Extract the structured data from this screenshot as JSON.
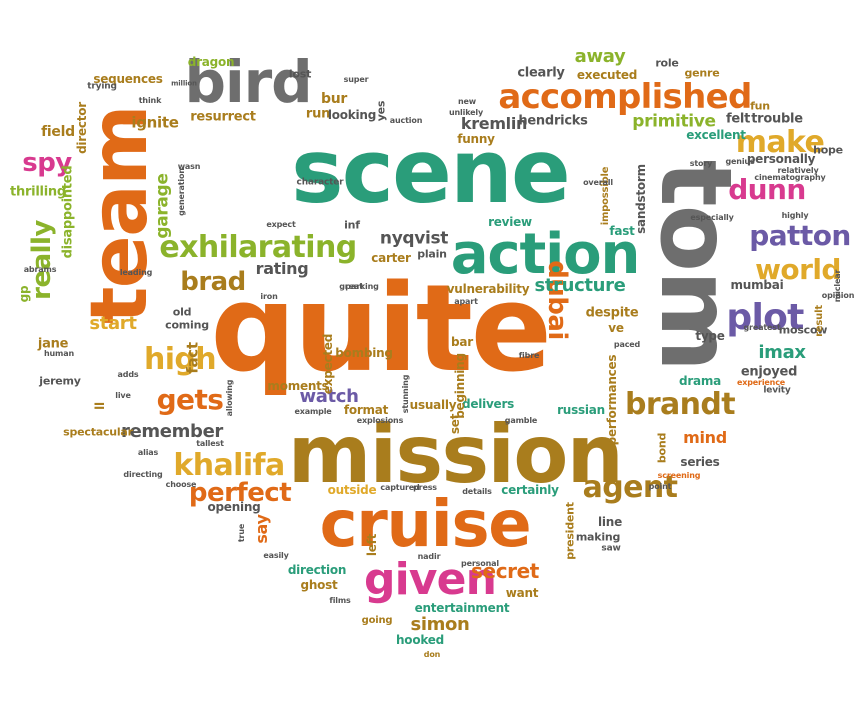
{
  "colors": {
    "green": "#2a9d7a",
    "orange": "#e06a17",
    "gray": "#6e6e6e",
    "olive": "#a97d1d",
    "gold": "#e0a92a",
    "pink": "#d83a8f",
    "purple": "#6b5aa6",
    "lime": "#8bb32b",
    "teal": "#2a9d7a",
    "darkgray": "#555555"
  },
  "words": [
    {
      "text": "scene",
      "color": "green"
    },
    {
      "text": "quite",
      "color": "orange"
    },
    {
      "text": "mission",
      "color": "olive"
    },
    {
      "text": "cruise",
      "color": "orange"
    },
    {
      "text": "tom",
      "color": "gray"
    },
    {
      "text": "team",
      "color": "orange"
    },
    {
      "text": "bird",
      "color": "gray"
    },
    {
      "text": "action",
      "color": "green"
    },
    {
      "text": "given",
      "color": "pink"
    },
    {
      "text": "accomplished",
      "color": "orange"
    },
    {
      "text": "exhilarating",
      "color": "lime"
    },
    {
      "text": "plot",
      "color": "purple"
    },
    {
      "text": "patton",
      "color": "purple"
    },
    {
      "text": "world",
      "color": "gold"
    },
    {
      "text": "brandt",
      "color": "olive"
    },
    {
      "text": "dunn",
      "color": "pink"
    },
    {
      "text": "make",
      "color": "gold"
    },
    {
      "text": "khalifa",
      "color": "gold"
    },
    {
      "text": "agent",
      "color": "olive"
    },
    {
      "text": "gets",
      "color": "orange"
    },
    {
      "text": "high",
      "color": "gold"
    },
    {
      "text": "brad",
      "color": "olive"
    },
    {
      "text": "really",
      "color": "lime"
    },
    {
      "text": "spy",
      "color": "pink"
    },
    {
      "text": "dubai",
      "color": "orange"
    },
    {
      "text": "perfect",
      "color": "orange"
    },
    {
      "text": "secret",
      "color": "orange"
    },
    {
      "text": "simon",
      "color": "olive"
    },
    {
      "text": "away",
      "color": "lime"
    },
    {
      "text": "primitive",
      "color": "lime"
    },
    {
      "text": "structure",
      "color": "green"
    },
    {
      "text": "remember",
      "color": "darkgray"
    },
    {
      "text": "imax",
      "color": "green"
    },
    {
      "text": "mind",
      "color": "orange"
    },
    {
      "text": "watch",
      "color": "purple"
    },
    {
      "text": "start",
      "color": "gold"
    },
    {
      "text": "rating",
      "color": "darkgray"
    },
    {
      "text": "kremlin",
      "color": "darkgray"
    },
    {
      "text": "nyqvist",
      "color": "darkgray"
    },
    {
      "text": "garage",
      "color": "lime"
    },
    {
      "text": "fact",
      "color": "olive"
    },
    {
      "text": "ignite",
      "color": "olive"
    },
    {
      "text": "resurrect",
      "color": "olive"
    },
    {
      "text": "sequences",
      "color": "olive"
    },
    {
      "text": "dragon",
      "color": "lime"
    },
    {
      "text": "lost",
      "color": "darkgray"
    },
    {
      "text": "super",
      "color": "darkgray"
    },
    {
      "text": "clearly",
      "color": "darkgray"
    },
    {
      "text": "executed",
      "color": "olive"
    },
    {
      "text": "role",
      "color": "darkgray"
    },
    {
      "text": "genre",
      "color": "olive"
    },
    {
      "text": "fun",
      "color": "olive"
    },
    {
      "text": "felt",
      "color": "darkgray"
    },
    {
      "text": "trouble",
      "color": "darkgray"
    },
    {
      "text": "hope",
      "color": "darkgray"
    },
    {
      "text": "excellent",
      "color": "green"
    },
    {
      "text": "personally",
      "color": "darkgray"
    },
    {
      "text": "relatively",
      "color": "darkgray"
    },
    {
      "text": "hendricks",
      "color": "darkgray"
    },
    {
      "text": "funny",
      "color": "olive"
    },
    {
      "text": "bur",
      "color": "olive"
    },
    {
      "text": "run",
      "color": "olive"
    },
    {
      "text": "looking",
      "color": "darkgray"
    },
    {
      "text": "yes",
      "color": "darkgray"
    },
    {
      "text": "auction",
      "color": "darkgray"
    },
    {
      "text": "new",
      "color": "darkgray"
    },
    {
      "text": "unlikely",
      "color": "darkgray"
    },
    {
      "text": "field",
      "color": "olive"
    },
    {
      "text": "director",
      "color": "olive"
    },
    {
      "text": "trying",
      "color": "darkgray"
    },
    {
      "text": "think",
      "color": "darkgray"
    },
    {
      "text": "million",
      "color": "darkgray"
    },
    {
      "text": "thrilling",
      "color": "lime"
    },
    {
      "text": "disappointed",
      "color": "lime"
    },
    {
      "text": "gp",
      "color": "lime"
    },
    {
      "text": "character",
      "color": "darkgray"
    },
    {
      "text": "review",
      "color": "green"
    },
    {
      "text": "fast",
      "color": "green"
    },
    {
      "text": "carter",
      "color": "olive"
    },
    {
      "text": "plain",
      "color": "darkgray"
    },
    {
      "text": "inf",
      "color": "darkgray"
    },
    {
      "text": "expect",
      "color": "darkgray"
    },
    {
      "text": "parking",
      "color": "darkgray"
    },
    {
      "text": "vulnerability",
      "color": "olive"
    },
    {
      "text": "sandstorm",
      "color": "darkgray"
    },
    {
      "text": "impossible",
      "color": "olive"
    },
    {
      "text": "overall",
      "color": "darkgray"
    },
    {
      "text": "mumbai",
      "color": "darkgray"
    },
    {
      "text": "moscow",
      "color": "darkgray"
    },
    {
      "text": "result",
      "color": "olive"
    },
    {
      "text": "nuclear",
      "color": "darkgray"
    },
    {
      "text": "opinion",
      "color": "darkgray"
    },
    {
      "text": "greatest",
      "color": "darkgray"
    },
    {
      "text": "type",
      "color": "darkgray"
    },
    {
      "text": "despite",
      "color": "olive"
    },
    {
      "text": "enjoyed",
      "color": "darkgray"
    },
    {
      "text": "drama",
      "color": "green"
    },
    {
      "text": "levity",
      "color": "darkgray"
    },
    {
      "text": "experience",
      "color": "orange"
    },
    {
      "text": "series",
      "color": "darkgray"
    },
    {
      "text": "bond",
      "color": "olive"
    },
    {
      "text": "screening",
      "color": "orange"
    },
    {
      "text": "point",
      "color": "darkgray"
    },
    {
      "text": "line",
      "color": "darkgray"
    },
    {
      "text": "making",
      "color": "darkgray"
    },
    {
      "text": "saw",
      "color": "darkgray"
    },
    {
      "text": "president",
      "color": "olive"
    },
    {
      "text": "certainly",
      "color": "green"
    },
    {
      "text": "outside",
      "color": "gold"
    },
    {
      "text": "captured",
      "color": "darkgray"
    },
    {
      "text": "press",
      "color": "darkgray"
    },
    {
      "text": "details",
      "color": "darkgray"
    },
    {
      "text": "say",
      "color": "orange"
    },
    {
      "text": "opening",
      "color": "darkgray"
    },
    {
      "text": "choose",
      "color": "darkgray"
    },
    {
      "text": "alias",
      "color": "darkgray"
    },
    {
      "text": "directing",
      "color": "darkgray"
    },
    {
      "text": "true",
      "color": "darkgray"
    },
    {
      "text": "easily",
      "color": "darkgray"
    },
    {
      "text": "direction",
      "color": "green"
    },
    {
      "text": "ghost",
      "color": "olive"
    },
    {
      "text": "left",
      "color": "olive"
    },
    {
      "text": "entertainment",
      "color": "green"
    },
    {
      "text": "want",
      "color": "olive"
    },
    {
      "text": "hooked",
      "color": "green"
    },
    {
      "text": "going",
      "color": "olive"
    },
    {
      "text": "don",
      "color": "olive"
    },
    {
      "text": "films",
      "color": "darkgray"
    },
    {
      "text": "nadir",
      "color": "darkgray"
    },
    {
      "text": "personal",
      "color": "darkgray"
    },
    {
      "text": "jane",
      "color": "olive"
    },
    {
      "text": "human",
      "color": "darkgray"
    },
    {
      "text": "jeremy",
      "color": "darkgray"
    },
    {
      "text": "ll",
      "color": "olive"
    },
    {
      "text": "spectacular",
      "color": "olive"
    },
    {
      "text": "live",
      "color": "darkgray"
    },
    {
      "text": "adds",
      "color": "darkgray"
    },
    {
      "text": "tallest",
      "color": "darkgray"
    },
    {
      "text": "allowing",
      "color": "darkgray"
    },
    {
      "text": "moments",
      "color": "olive"
    },
    {
      "text": "expected",
      "color": "olive"
    },
    {
      "text": "bombing",
      "color": "olive"
    },
    {
      "text": "great",
      "color": "darkgray"
    },
    {
      "text": "iron",
      "color": "darkgray"
    },
    {
      "text": "leading",
      "color": "darkgray"
    },
    {
      "text": "old",
      "color": "darkgray"
    },
    {
      "text": "coming",
      "color": "darkgray"
    },
    {
      "text": "format",
      "color": "olive"
    },
    {
      "text": "example",
      "color": "darkgray"
    },
    {
      "text": "explosions",
      "color": "darkgray"
    },
    {
      "text": "usually",
      "color": "olive"
    },
    {
      "text": "delivers",
      "color": "green"
    },
    {
      "text": "russian",
      "color": "green"
    },
    {
      "text": "gamble",
      "color": "darkgray"
    },
    {
      "text": "performances",
      "color": "olive"
    },
    {
      "text": "set",
      "color": "olive"
    },
    {
      "text": "bar",
      "color": "olive"
    },
    {
      "text": "beginning",
      "color": "olive"
    },
    {
      "text": "stunning",
      "color": "darkgray"
    },
    {
      "text": "apart",
      "color": "darkgray"
    },
    {
      "text": "fibre",
      "color": "darkgray"
    },
    {
      "text": "ve",
      "color": "olive"
    },
    {
      "text": "paced",
      "color": "darkgray"
    },
    {
      "text": "especially",
      "color": "darkgray"
    },
    {
      "text": "highly",
      "color": "darkgray"
    },
    {
      "text": "cinematography",
      "color": "darkgray"
    },
    {
      "text": "story",
      "color": "darkgray"
    },
    {
      "text": "genius",
      "color": "darkgray"
    },
    {
      "text": "wasn",
      "color": "darkgray"
    },
    {
      "text": "generation",
      "color": "darkgray"
    },
    {
      "text": "abrams",
      "color": "darkgray"
    }
  ]
}
